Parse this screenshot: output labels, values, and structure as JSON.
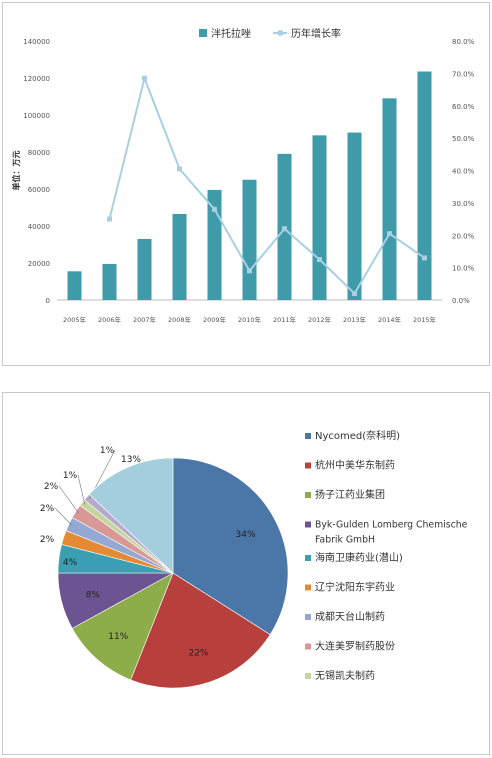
{
  "chart_data": [
    {
      "type": "bar",
      "title": "",
      "ylabel": "单位：万元",
      "y2label": "",
      "categories": [
        "2005年",
        "2006年",
        "2007年",
        "2008年",
        "2009年",
        "2010年",
        "2011年",
        "2012年",
        "2013年",
        "2014年",
        "2015年"
      ],
      "series": [
        {
          "name": "泮托拉唑",
          "type": "bar",
          "axis": "left",
          "values": [
            15500,
            19500,
            33000,
            46500,
            59500,
            65000,
            79000,
            89000,
            90500,
            109000,
            123500
          ]
        },
        {
          "name": "历年增长率",
          "type": "line",
          "axis": "right",
          "values": [
            null,
            25.0,
            68.5,
            40.5,
            28.0,
            9.0,
            22.0,
            12.5,
            2.0,
            20.5,
            13.0
          ]
        }
      ],
      "ylim": [
        0,
        140000
      ],
      "yticks": [
        "0",
        "20000",
        "40000",
        "60000",
        "80000",
        "100000",
        "120000",
        "140000"
      ],
      "y2lim": [
        0,
        80
      ],
      "y2ticks": [
        "0.0%",
        "10.0%",
        "20.0%",
        "30.0%",
        "40.0%",
        "50.0%",
        "60.0%",
        "70.0%",
        "80.0%"
      ],
      "legend": "top-center",
      "colors": {
        "bar": "#3f9aaa",
        "line": "#a9cfe3"
      }
    },
    {
      "type": "pie",
      "title": "",
      "slices": [
        {
          "name": "Nycomed(奈科明)",
          "value": 34,
          "label": "34%",
          "color": "#4b76a8"
        },
        {
          "name": "杭州中美华东制药",
          "value": 22,
          "label": "22%",
          "color": "#b8403c"
        },
        {
          "name": "扬子江药业集团",
          "value": 11,
          "label": "11%",
          "color": "#8dad4a"
        },
        {
          "name": "Byk-Gulden Lomberg Chemische Fabrik GmbH",
          "value": 8,
          "label": "8%",
          "color": "#6c5492"
        },
        {
          "name": "海南卫康药业(潜山)",
          "value": 4,
          "label": "4%",
          "color": "#3a9fb3"
        },
        {
          "name": "辽宁沈阳东宇药业",
          "value": 2,
          "label": "2%",
          "color": "#e58a34"
        },
        {
          "name": "成都天台山制药",
          "value": 2,
          "label": "2%",
          "color": "#93a9d3"
        },
        {
          "name": "大连美罗制药股份",
          "value": 2,
          "label": "2%",
          "color": "#d89895"
        },
        {
          "name": "无锡凯夫制药",
          "value": 1,
          "label": "1%",
          "color": "#c3d69e"
        },
        {
          "name": "",
          "value": 1,
          "label": "1%",
          "color": "#b6a9cc"
        },
        {
          "name": "",
          "value": 13,
          "label": "13%",
          "color": "#a4cedd"
        }
      ],
      "legend": "right"
    }
  ]
}
